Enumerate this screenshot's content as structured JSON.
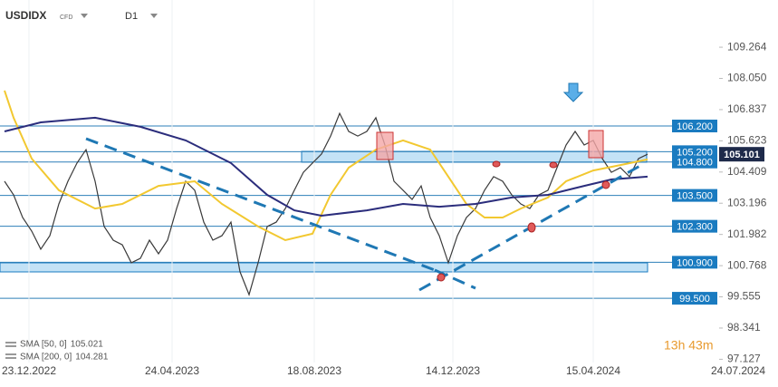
{
  "header": {
    "symbol": "USDIDX",
    "kind": "CFD",
    "timeframe": "D1"
  },
  "timer": "13h 43m",
  "chart_data": {
    "type": "line",
    "xlim": [
      -0.5,
      71.5
    ],
    "ylim": [
      97.0,
      111.1
    ],
    "yticks": [
      109.264,
      {
        "value": 108.05,
        "label": "108.050"
      },
      106.837,
      105.623,
      104.409,
      103.196,
      101.982,
      100.768,
      99.555,
      98.341,
      97.127
    ],
    "xticks": [
      {
        "value": 2.7,
        "label": "23.12.2022"
      },
      {
        "value": 18.5,
        "label": "24.04.2023"
      },
      {
        "value": 34.2,
        "label": "18.08.2023"
      },
      {
        "value": 49.5,
        "label": "14.12.2023"
      },
      {
        "value": 65,
        "label": "15.04.2024"
      },
      {
        "value": 81,
        "label": "24.07.2024"
      }
    ],
    "series": [
      {
        "color": "#3a3a3a",
        "values": [
          104.05,
          103.52,
          102.64,
          102.11,
          101.41,
          101.93,
          103.17,
          104.05,
          104.76,
          105.28,
          104.05,
          102.29,
          101.76,
          101.58,
          100.88,
          101.05,
          101.76,
          101.23,
          101.76,
          102.99,
          104.05,
          103.7,
          102.46,
          101.76,
          101.93,
          102.46,
          100.53,
          99.64,
          100.88,
          102.29,
          102.46,
          102.99,
          103.7,
          104.4,
          104.76,
          105.11,
          105.81,
          106.69,
          105.99,
          105.81,
          105.99,
          106.52,
          105.46,
          104.05,
          103.7,
          103.34,
          103.87,
          102.64,
          101.93,
          100.88,
          101.93,
          102.64,
          102.99,
          103.7,
          104.23,
          104.05,
          103.52,
          103.17,
          102.99,
          103.52,
          103.7,
          104.58,
          105.46,
          105.99,
          105.46,
          105.64,
          104.93,
          104.4,
          104.58,
          104.23,
          104.93,
          105.1
        ]
      },
      {
        "name": "SMA [50, 0]",
        "last": 105.021,
        "color": "#f2c830",
        "x": [
          0,
          1,
          3,
          6,
          10,
          13,
          17,
          21,
          24,
          28,
          31,
          34,
          36,
          38,
          41,
          44,
          47,
          49,
          51,
          53,
          55,
          57,
          60,
          62,
          65,
          68,
          71
        ],
        "values": [
          107.58,
          106.52,
          104.93,
          103.7,
          102.99,
          103.17,
          103.87,
          104.05,
          103.17,
          102.29,
          101.76,
          102.01,
          103.52,
          104.58,
          105.28,
          105.64,
          105.28,
          104.23,
          103.17,
          102.64,
          102.64,
          102.99,
          103.42,
          104.05,
          104.47,
          104.68,
          104.9
        ]
      },
      {
        "name": "SMA [200, 0]",
        "last": 104.281,
        "color": "#2b2d7c",
        "x": [
          0,
          4,
          10,
          15,
          20,
          25,
          29,
          32,
          35,
          40,
          44,
          48,
          52,
          56,
          60,
          64,
          67,
          71
        ],
        "values": [
          105.99,
          106.34,
          106.52,
          106.17,
          105.64,
          104.76,
          103.52,
          102.92,
          102.71,
          102.92,
          103.17,
          103.06,
          103.17,
          103.42,
          103.52,
          103.87,
          104.12,
          104.23
        ]
      }
    ],
    "levels": [
      {
        "value": 106.2,
        "label": "106.200"
      },
      {
        "value": 105.2,
        "label": "105.200"
      },
      {
        "value": 104.8,
        "label": "104.800"
      },
      {
        "value": 103.5,
        "label": "103.500"
      },
      {
        "value": 102.3,
        "label": "102.300"
      },
      {
        "value": 100.9,
        "label": "100.900"
      },
      {
        "value": 99.5,
        "label": "99.500"
      }
    ],
    "last_price": 105.101
  }
}
